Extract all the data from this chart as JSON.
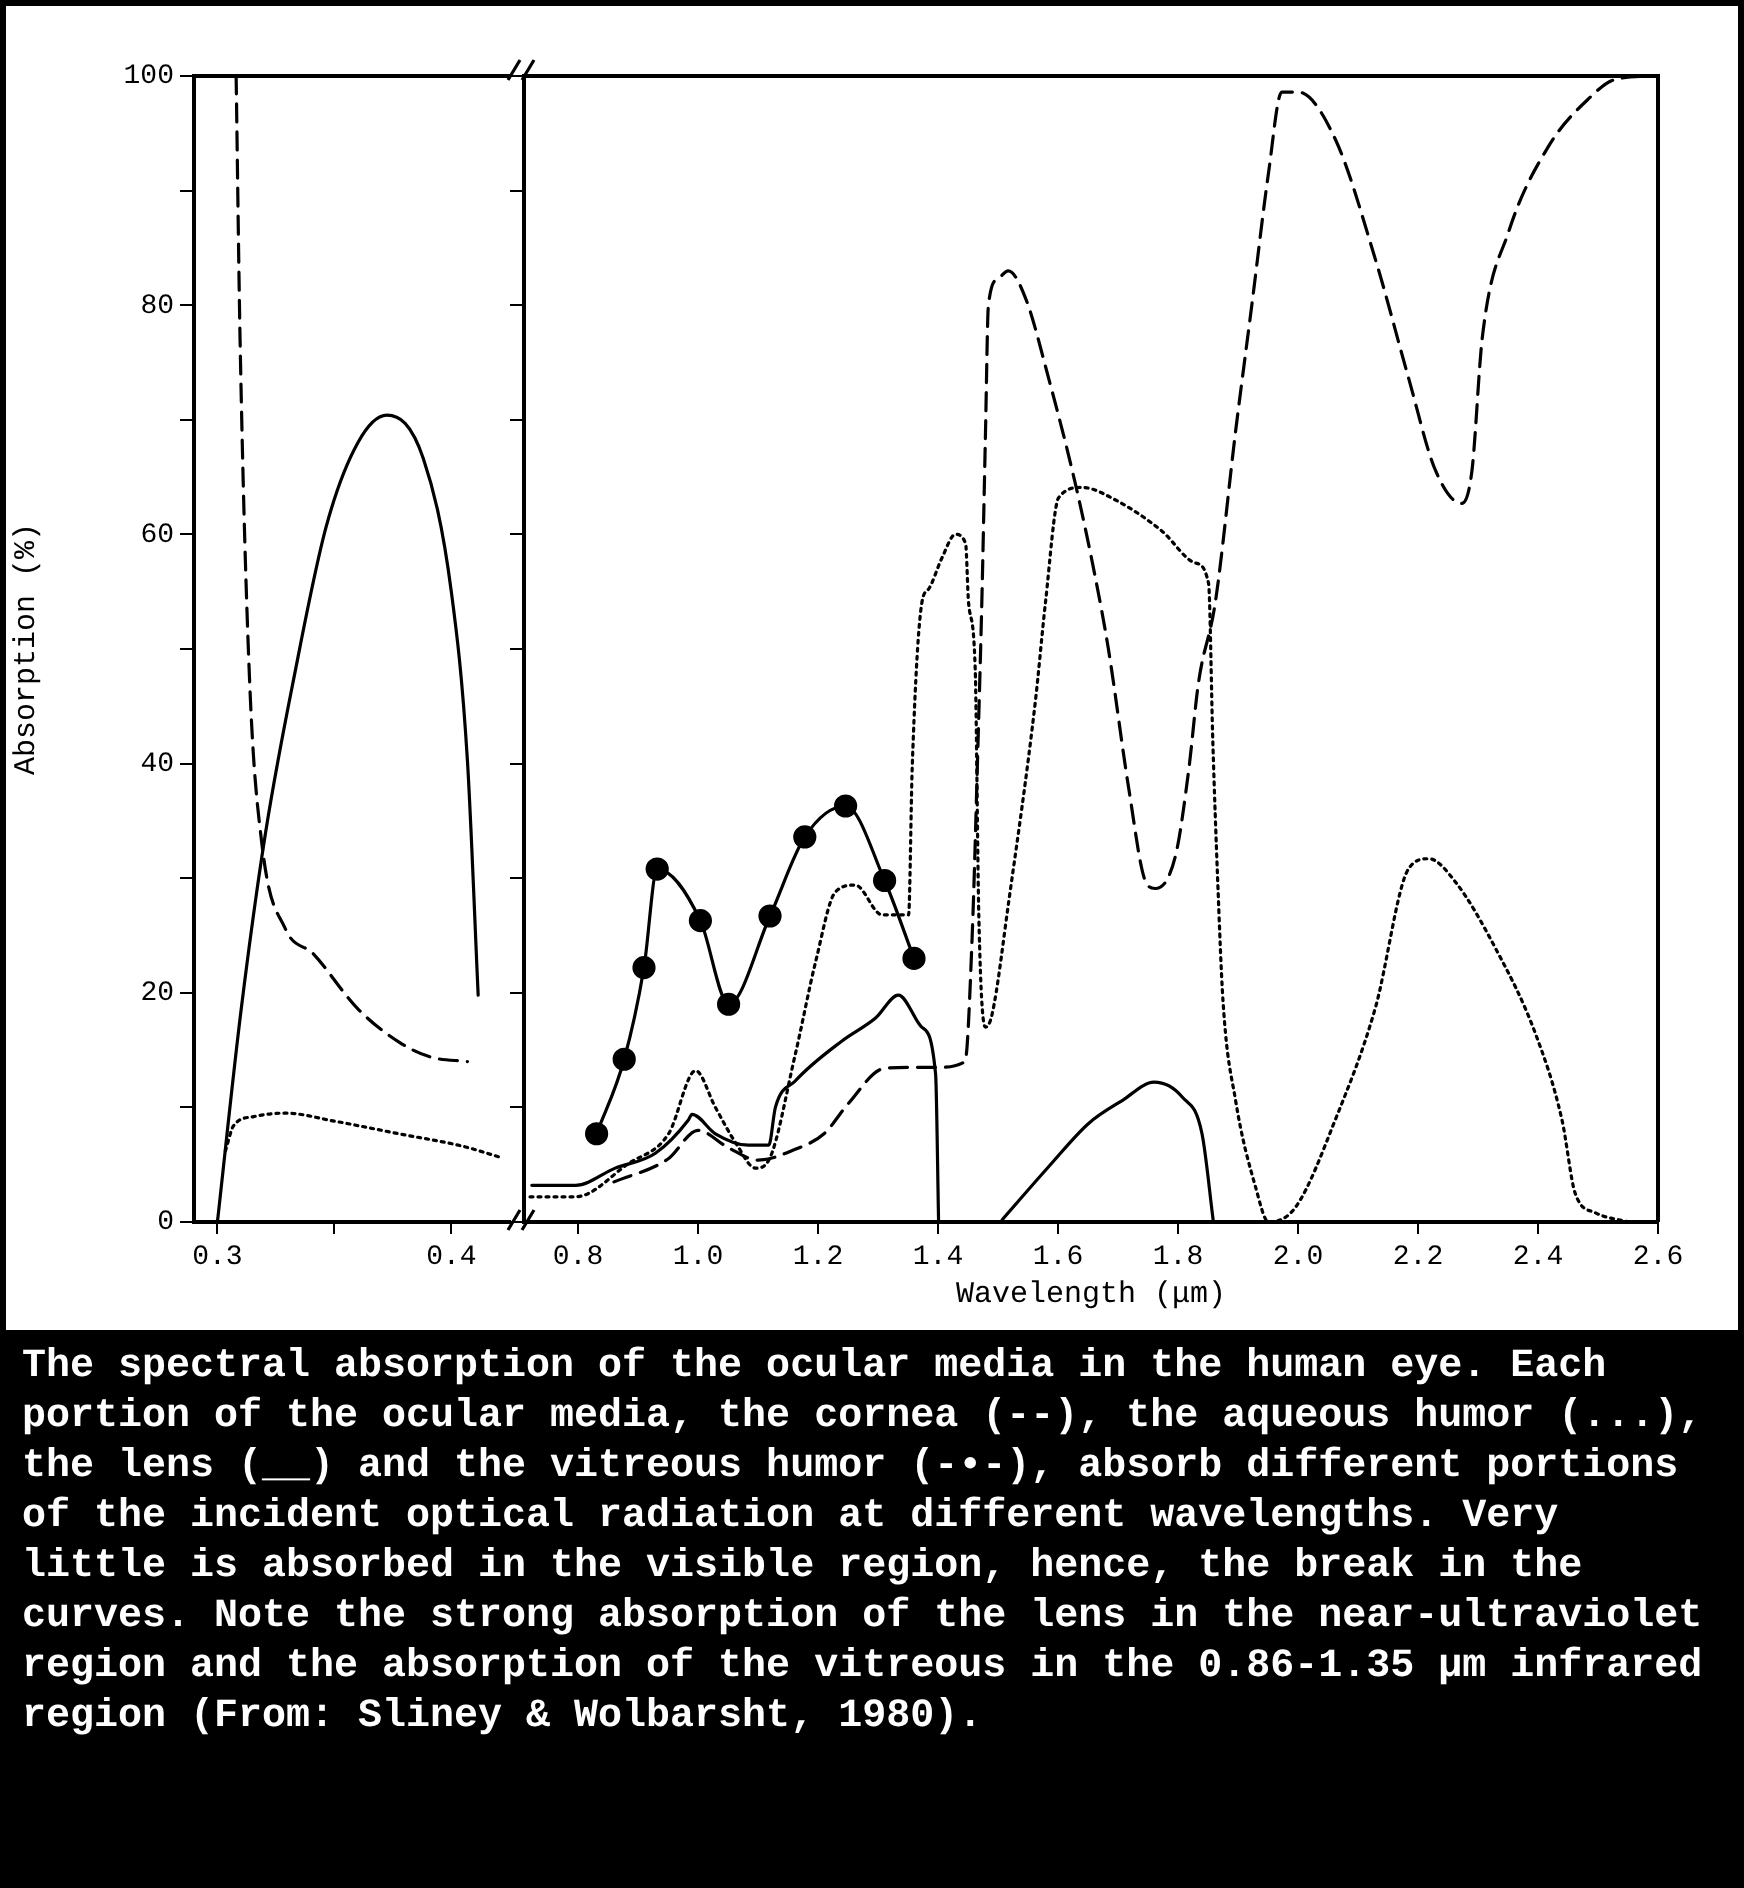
{
  "chart_data": [
    {
      "type": "line",
      "ylabel": "Absorption (%)",
      "xlim": [
        0.29,
        0.425
      ],
      "xticks": [
        0.3,
        {
          "value": 0.35,
          "label": null
        },
        0.4
      ],
      "ylim": [
        0,
        100
      ],
      "yticks": [
        0,
        {
          "value": 10,
          "label": null
        },
        20,
        {
          "value": 30,
          "label": null
        },
        40,
        {
          "value": 50,
          "label": null
        },
        60,
        {
          "value": 70,
          "label": null
        },
        80,
        {
          "value": 90,
          "label": null
        },
        100
      ],
      "series": [
        {
          "color": "#000000",
          "line_style": "dashed",
          "x": [
            0.308,
            0.3097,
            0.3137,
            0.319,
            0.329,
            0.341,
            0.36,
            0.3776,
            0.391,
            0.4068
          ],
          "values": [
            100,
            76.8,
            47.5,
            33,
            25.6,
            23.4,
            18.6,
            15.7,
            14.4,
            14.0
          ]
        },
        {
          "color": "#000000",
          "line_style": "dotted",
          "x": [
            0.3034,
            0.3069,
            0.3155,
            0.329,
            0.35,
            0.3775,
            0.405,
            0.42
          ],
          "values": [
            6.2,
            8.4,
            9.2,
            9.5,
            8.8,
            7.7,
            6.6,
            5.7
          ]
        },
        {
          "color": "#000000",
          "line_style": "solid",
          "x": [
            0.3,
            0.31,
            0.3206,
            0.3327,
            0.3465,
            0.36,
            0.3724,
            0.388,
            0.4,
            0.4068,
            0.4114
          ],
          "values": [
            0,
            18.3,
            34,
            47.5,
            60.7,
            68,
            70.4,
            66.6,
            54.9,
            40.3,
            19.8
          ]
        }
      ]
    },
    {
      "type": "line",
      "xlabel": "Wavelength (μm)",
      "xlim": [
        0.71,
        2.6
      ],
      "xticks": [
        0.8,
        {
          "value": 1.0,
          "label": "1.0"
        },
        1.2,
        1.4,
        1.6,
        1.8,
        {
          "value": 2.0,
          "label": "2.0"
        },
        2.2,
        2.4,
        2.6
      ],
      "ylim": [
        0,
        100
      ],
      "yticks": [
        0,
        10,
        20,
        30,
        40,
        50,
        60,
        70,
        80,
        90,
        100
      ],
      "tick_labels": "x",
      "annotations": [
        "The spectral absorption of the ocular media in the human eye. Each portion of the ocular media, the cornea (--), the aqueous humor (...), the lens (__) and the vitreous humor (-•-), absorb different portions of the incident optical radiation at different wavelengths. Very little is absorbed in the visible region, hence, the break in the curves. Note the strong absorption of the lens in the near-ultraviolet region and the absorption of the vitreous in the 0.86-1.35 μm infrared region (From: Sliney & Wolbarsht, 1980)."
      ],
      "series": [
        {
          "color": "#000000",
          "line_style": "dashed",
          "x": [
            0.86,
            0.95,
            1.0,
            1.05,
            1.1,
            1.16,
            1.21,
            1.25,
            1.31,
            1.36,
            1.4,
            1.445,
            1.457,
            1.467,
            1.473,
            1.479,
            1.484,
            1.5,
            1.517,
            1.546,
            1.584,
            1.629,
            1.662,
            1.684,
            1.718,
            1.746,
            1.762,
            1.796,
            1.818,
            1.834,
            1.862,
            1.896,
            1.923,
            1.951,
            1.973,
            2.0,
            2.062,
            2.129,
            2.184,
            2.229,
            2.273,
            2.29,
            2.307,
            2.351,
            2.418,
            2.484,
            2.529,
            2.596
          ],
          "values": [
            3.5,
            5.5,
            8.0,
            6.5,
            5.4,
            6.3,
            7.7,
            10.3,
            13.4,
            13.5,
            13.5,
            14,
            25,
            42.4,
            54,
            68.5,
            80,
            82.3,
            83,
            80.6,
            73.7,
            64.4,
            56.3,
            50,
            37.8,
            29.7,
            29.1,
            32,
            39.5,
            47,
            54,
            69,
            80,
            91.6,
            98.6,
            98.6,
            94.5,
            84,
            73.7,
            65.6,
            62.7,
            65.6,
            77.1,
            86.4,
            93.9,
            98,
            99.7,
            100
          ]
        },
        {
          "color": "#000000",
          "line_style": "dotted",
          "x": [
            0.72,
            0.796,
            0.884,
            0.951,
            0.996,
            1.029,
            1.064,
            1.096,
            1.118,
            1.162,
            1.196,
            1.229,
            1.262,
            1.307,
            1.351,
            1.357,
            1.373,
            1.384,
            1.407,
            1.429,
            1.446,
            1.451,
            1.462,
            1.468,
            1.479,
            1.49,
            1.518,
            1.562,
            1.579,
            1.601,
            1.64,
            1.696,
            1.773,
            1.829,
            1.851,
            1.858,
            1.866,
            1.875,
            1.896,
            1.929,
            1.951,
            1.996,
            2.062,
            2.129,
            2.184,
            2.218,
            2.262,
            2.329,
            2.396,
            2.44,
            2.462,
            2.496,
            2.551
          ],
          "values": [
            2.2,
            2.2,
            5.1,
            7.7,
            13.2,
            10.0,
            6.8,
            4.7,
            5.4,
            14.6,
            22.7,
            28.8,
            29.4,
            26.8,
            26.8,
            39.6,
            54,
            55.2,
            58,
            60,
            59.2,
            54,
            48.3,
            26.8,
            17,
            18.1,
            28,
            45.3,
            54,
            63.2,
            64.1,
            63,
            60.3,
            57.5,
            55.7,
            42,
            30,
            19.3,
            10.6,
            3.1,
            0,
            1.3,
            8.9,
            18.7,
            30.8,
            31.7,
            29.7,
            23.9,
            16.4,
            8.9,
            2.5,
            0.8,
            0
          ]
        },
        {
          "color": "#000000",
          "line_style": "solid",
          "x": [
            0.723,
            0.796,
            0.862,
            0.929,
            0.984,
            0.99,
            1.029,
            1.084,
            1.118,
            1.129,
            1.162,
            1.24,
            1.296,
            1.334,
            1.373,
            1.396,
            1.401,
            1.45,
            1.507,
            1.584,
            1.651,
            1.707,
            1.76,
            1.807,
            1.84,
            1.859
          ],
          "values": [
            3.2,
            3.2,
            4.7,
            6.0,
            8.9,
            9.4,
            7.7,
            6.7,
            6.7,
            10.0,
            12.3,
            15.8,
            17.8,
            19.8,
            17.0,
            12.9,
            0,
            null,
            0.2,
            4.8,
            8.6,
            10.6,
            12.2,
            10.9,
            7.7,
            0
          ]
        },
        {
          "color": "#000000",
          "line_style": "solid",
          "marker": "circle",
          "x": [
            0.831,
            0.877,
            0.91,
            0.932,
            1.004,
            1.051,
            1.12,
            1.178,
            1.246,
            1.311,
            1.36
          ],
          "values": [
            7.7,
            14.2,
            22.2,
            30.8,
            26.3,
            19.0,
            26.7,
            33.6,
            36.3,
            29.8,
            23.0
          ]
        }
      ]
    }
  ]
}
